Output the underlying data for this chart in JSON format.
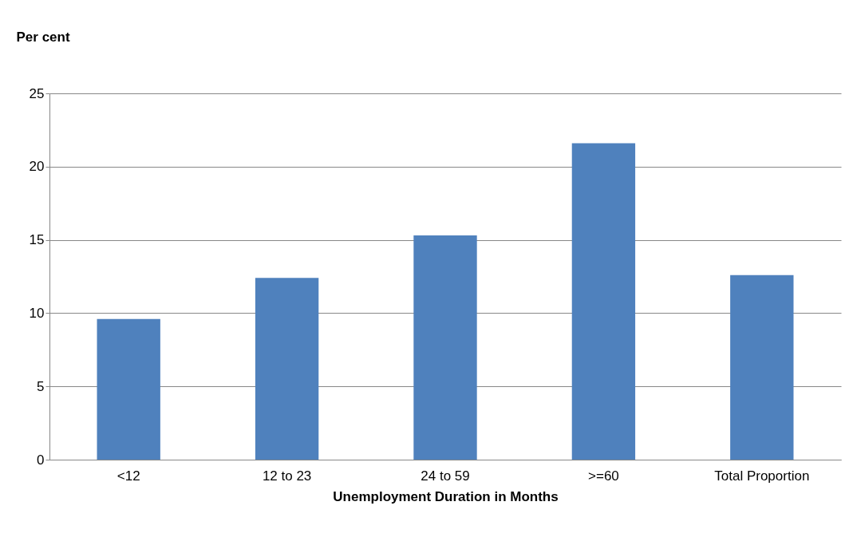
{
  "chart_data": {
    "type": "bar",
    "xlabel": "Unemployment Duration in Months",
    "ylabel": "Per cent",
    "categories": [
      "<12",
      "12 to 23",
      "24 to 59",
      ">=60",
      "Total Proportion"
    ],
    "values": [
      9.6,
      12.4,
      15.3,
      21.6,
      12.6
    ],
    "color": "#4f81bd",
    "ylim": [
      0,
      25
    ],
    "yticks": [
      0,
      5,
      10,
      15,
      20,
      25
    ],
    "grid": "y"
  }
}
